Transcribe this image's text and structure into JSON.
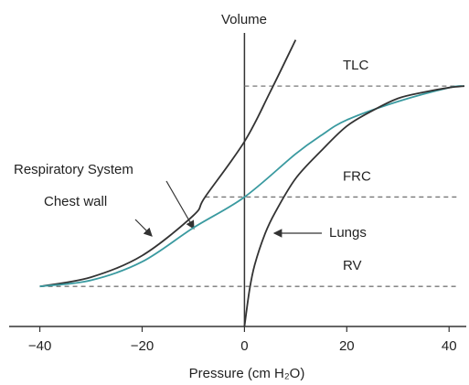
{
  "chart_data": {
    "type": "line",
    "y_label": "Volume",
    "x_label": "Pressure (cm H₂O)",
    "xlim": [
      -46,
      43
    ],
    "ylim": [
      0,
      100
    ],
    "xticks": [
      {
        "value": -40,
        "label": "−40"
      },
      {
        "value": -20,
        "label": "−20"
      },
      0,
      20,
      40
    ],
    "reference_lines": [
      {
        "label": "TLC",
        "value": 78,
        "x": [
          0,
          42
        ]
      },
      {
        "label": "FRC",
        "value": 42,
        "x": [
          -7.7,
          42
        ]
      },
      {
        "label": "RV",
        "value": 13,
        "x": [
          -40,
          42
        ]
      }
    ],
    "series": [
      {
        "name": "Chest wall",
        "color": "#333333",
        "x": [
          -40,
          -30,
          -20,
          -10,
          -7.7,
          0,
          5,
          10
        ],
        "values": [
          13,
          16,
          23,
          36,
          42,
          60,
          76,
          93
        ]
      },
      {
        "name": "Respiratory System",
        "color": "#3a9aa0",
        "x": [
          -40,
          -30,
          -20,
          -10,
          0,
          10,
          15,
          20,
          30,
          40,
          43
        ],
        "values": [
          13,
          15,
          21,
          32,
          42,
          56,
          62,
          67,
          73,
          77.5,
          78
        ]
      },
      {
        "name": "Lungs",
        "color": "#333333",
        "x": [
          0,
          1,
          2,
          4,
          6,
          10,
          15,
          20,
          25,
          30,
          35,
          40,
          43
        ],
        "values": [
          0,
          12,
          20,
          30,
          37,
          48,
          57,
          65,
          70,
          74,
          76,
          77.5,
          78
        ]
      }
    ]
  }
}
